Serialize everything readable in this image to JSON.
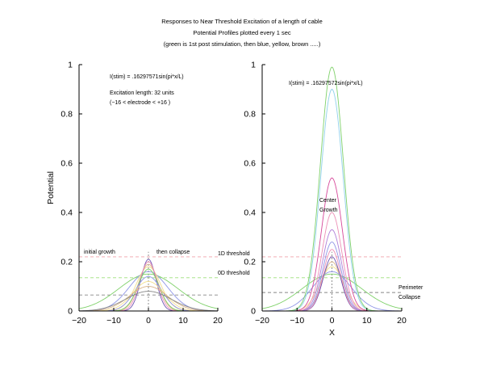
{
  "figure": {
    "title_line1": "Responses to Near Threshold Excitation of a length of cable",
    "title_line2": "Potential Profiles plotted every 1 sec",
    "title_line3": "(green is 1st post stimulation, then blue, yellow, brown .....)"
  },
  "colors": {
    "green": "#7fd16a",
    "blue": "#8f95e6",
    "yellow": "#f2de8c",
    "brown": "#d9b48a",
    "magenta": "#d6489a",
    "purple": "#6e54b4",
    "pink": "#ec8fb6",
    "threshold_1d": "#f0a0a8",
    "threshold_0d": "#9ee07a",
    "grey": "#888888"
  },
  "chart_data": [
    {
      "type": "line",
      "panel": "left",
      "ylabel": "Potential",
      "xlabel": "",
      "xlim": [
        -20,
        20
      ],
      "ylim": [
        0,
        1
      ],
      "xticks": [
        "−20",
        "−10",
        "0",
        "10",
        "20"
      ],
      "yticks": [
        "0",
        "0.2",
        "0.4",
        "0.6",
        "0.8",
        "1"
      ],
      "annotations": {
        "formula": "I(stim) = .16297571sin(pi*x/L)",
        "excitation_length": "Excitation length: 32 units",
        "electrode_range": "(−16 < electrode < +16 )",
        "initial_growth": "initial growth",
        "then_collapse": "then collapse"
      },
      "reference_lines": [
        {
          "y": 0.22,
          "color": "#f0a0a8"
        },
        {
          "y": 0.135,
          "color": "#9ee07a"
        },
        {
          "y": 0.065,
          "color": "#888888"
        }
      ],
      "series": [
        {
          "peak": 0.15,
          "width": 8.5,
          "color": "#7fd16a"
        },
        {
          "peak": 0.16,
          "width": 5.5,
          "color": "#8f95e6"
        },
        {
          "peak": 0.18,
          "width": 3.5,
          "color": "#f2de8c"
        },
        {
          "peak": 0.19,
          "width": 2.8,
          "color": "#d9b48a"
        },
        {
          "peak": 0.21,
          "width": 2.2,
          "color": "#6e54b4"
        },
        {
          "peak": 0.2,
          "width": 2.5,
          "color": "#ec8fb6"
        },
        {
          "peak": 0.17,
          "width": 3.0,
          "color": "#7fd16a"
        },
        {
          "peak": 0.14,
          "width": 3.8,
          "color": "#8f95e6"
        },
        {
          "peak": 0.12,
          "width": 4.5,
          "color": "#f2de8c"
        },
        {
          "peak": 0.1,
          "width": 5.5,
          "color": "#d9b48a"
        },
        {
          "peak": 0.08,
          "width": 6.5,
          "color": "#888888"
        }
      ]
    },
    {
      "type": "line",
      "panel": "right",
      "ylabel": "",
      "xlabel": "X",
      "xlim": [
        -20,
        20
      ],
      "ylim": [
        0,
        1
      ],
      "xticks": [
        "−20",
        "−10",
        "0",
        "10",
        "20"
      ],
      "yticks": [
        "0",
        "0.2",
        "0.4",
        "0.6",
        "0.8",
        "1"
      ],
      "annotations": {
        "formula": "I(stim) = .16297572sin(pi*x/L)",
        "center_growth_1": "Center",
        "center_growth_2": "Growth",
        "threshold_1d": "1D threshold",
        "threshold_0d": "0D threshold",
        "perimeter_1": "Perimeter",
        "perimeter_2": "Collapse"
      },
      "reference_lines": [
        {
          "y": 0.22,
          "color": "#f0a0a8"
        },
        {
          "y": 0.135,
          "color": "#9ee07a"
        },
        {
          "y": 0.075,
          "color": "#888888"
        }
      ],
      "series": [
        {
          "peak": 0.15,
          "width": 8.5,
          "color": "#7fd16a"
        },
        {
          "peak": 0.16,
          "width": 5.5,
          "color": "#8f95e6"
        },
        {
          "peak": 0.18,
          "width": 3.5,
          "color": "#f2de8c"
        },
        {
          "peak": 0.2,
          "width": 2.8,
          "color": "#d9b48a"
        },
        {
          "peak": 0.22,
          "width": 2.5,
          "color": "#6e54b4"
        },
        {
          "peak": 0.25,
          "width": 2.5,
          "color": "#ec8fb6"
        },
        {
          "peak": 0.28,
          "width": 2.6,
          "color": "#8f95e6"
        },
        {
          "peak": 0.33,
          "width": 2.7,
          "color": "#b07fd8"
        },
        {
          "peak": 0.4,
          "width": 2.8,
          "color": "#ec8fb6"
        },
        {
          "peak": 0.54,
          "width": 3.0,
          "color": "#d6489a"
        },
        {
          "peak": 0.9,
          "width": 3.2,
          "color": "#8fd0ea"
        },
        {
          "peak": 0.99,
          "width": 3.3,
          "color": "#7fd16a"
        }
      ]
    }
  ]
}
